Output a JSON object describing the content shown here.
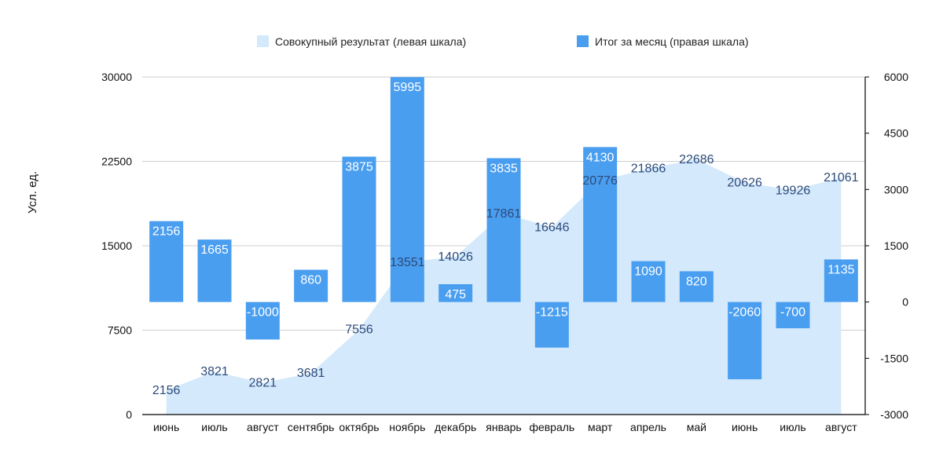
{
  "chart_data": {
    "type": "bar+area",
    "ylabel": "Усл. ед.",
    "categories": [
      "июнь",
      "июль",
      "август",
      "сентябрь",
      "октябрь",
      "ноябрь",
      "декабрь",
      "январь",
      "февраль",
      "март",
      "апрель",
      "май",
      "июнь",
      "июль",
      "август"
    ],
    "series": [
      {
        "name": "Совокупный результат (левая шкала)",
        "type": "area",
        "axis": "left",
        "color": "#d4e9fb",
        "label_color": "#2b4a7a",
        "values": [
          2156,
          3821,
          2821,
          3681,
          7556,
          13551,
          14026,
          17861,
          16646,
          20776,
          21866,
          22686,
          20626,
          19926,
          21061
        ]
      },
      {
        "name": "Итог за месяц (правая шкала)",
        "type": "bar",
        "axis": "right",
        "color": "#4a9ef0",
        "label_color": "#ffffff",
        "values": [
          2156,
          1665,
          -1000,
          860,
          3875,
          5995,
          475,
          3835,
          -1215,
          4130,
          1090,
          820,
          -2060,
          -700,
          1135
        ]
      }
    ],
    "y_left": {
      "range": [
        0,
        30000
      ],
      "ticks": [
        "0",
        "7500",
        "15000",
        "22500",
        "30000"
      ]
    },
    "y_right": {
      "range": [
        -3000,
        6000
      ],
      "ticks": [
        "-3000",
        "-1500",
        "0",
        "1500",
        "3000",
        "4500",
        "6000"
      ]
    },
    "grid": true,
    "legend_position": "top"
  }
}
